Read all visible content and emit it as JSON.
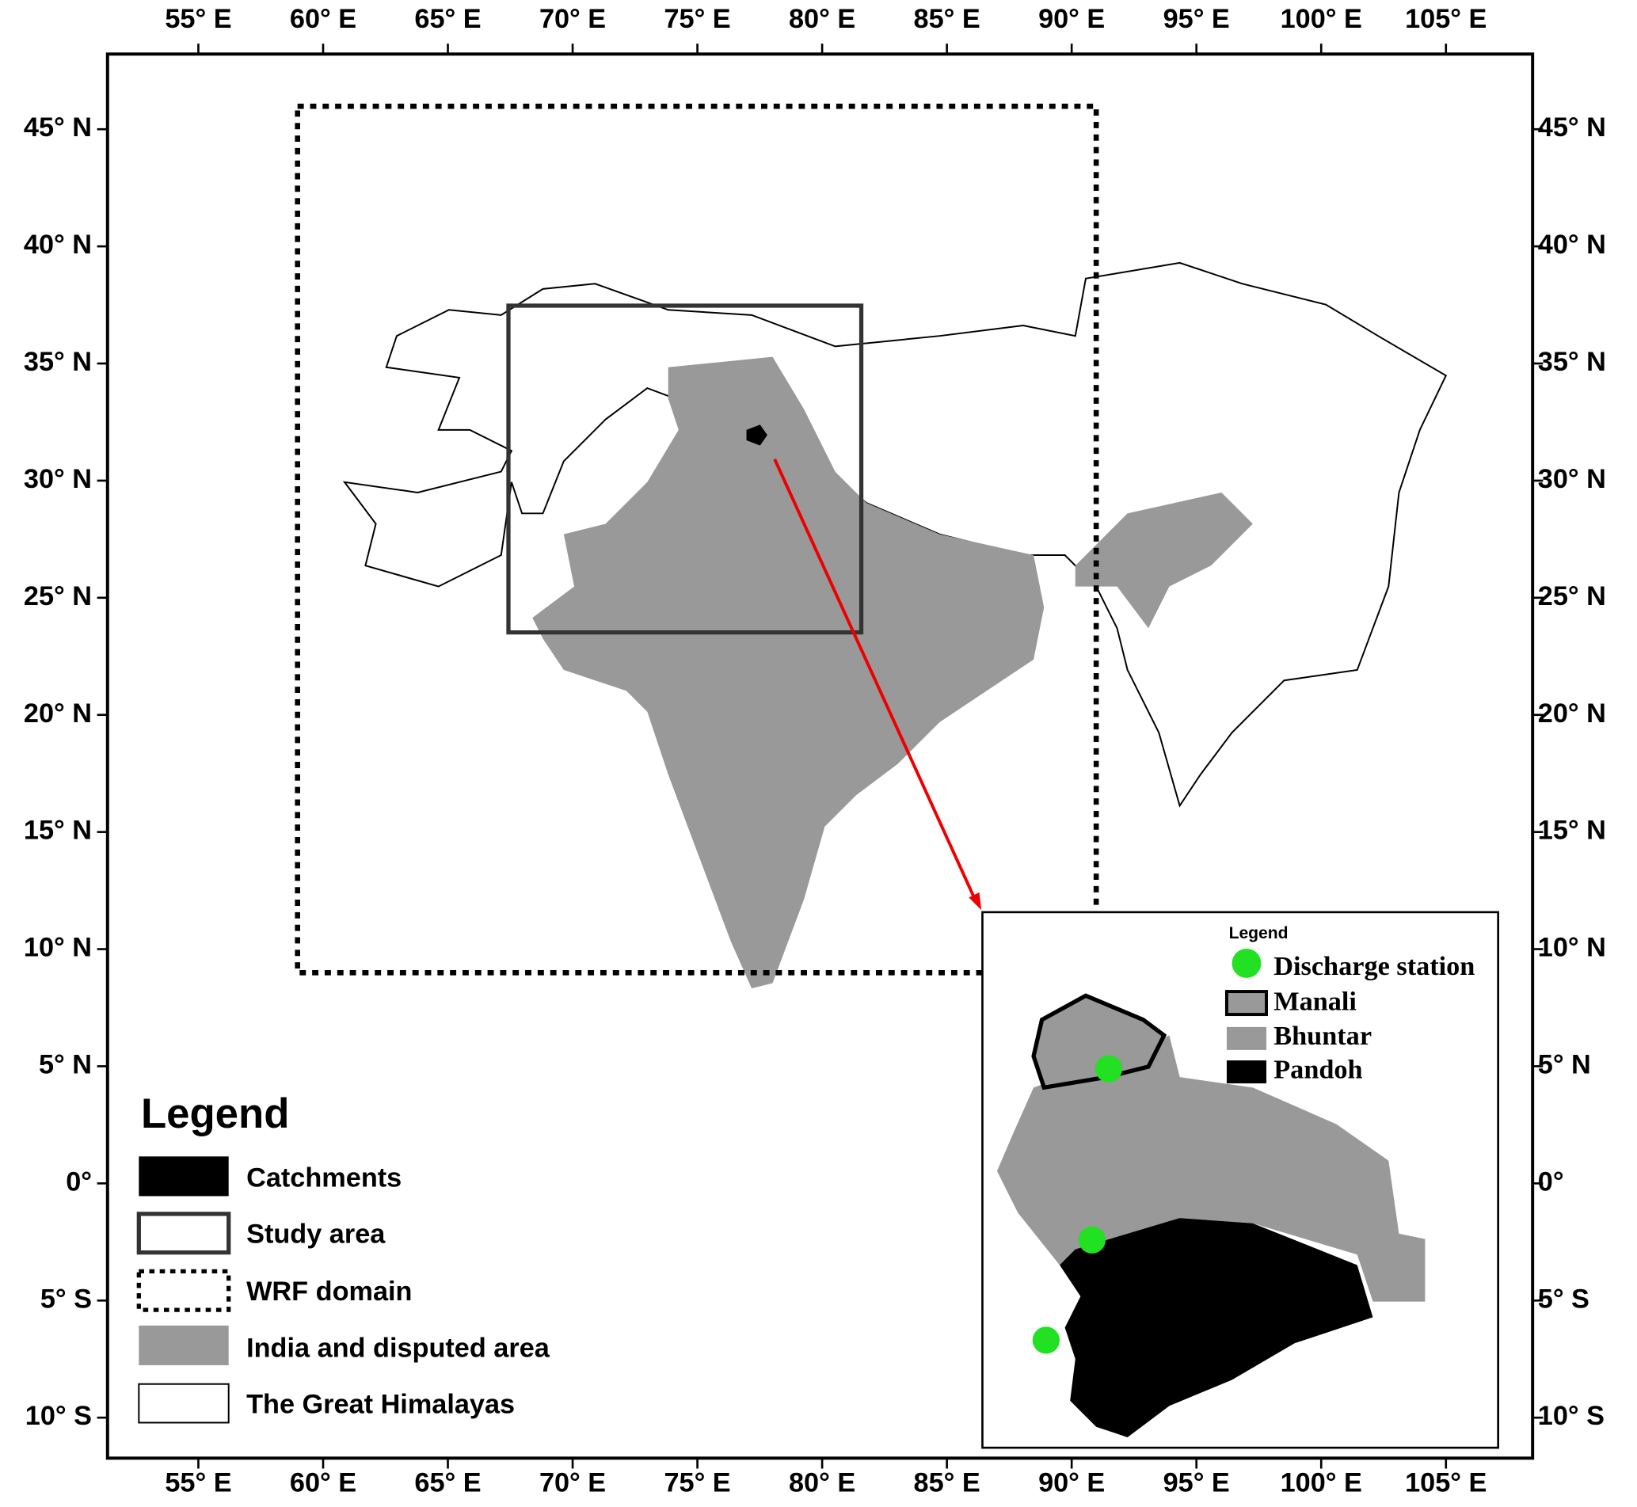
{
  "map": {
    "xticks": [
      {
        "value": 55,
        "label": "55° E"
      },
      {
        "value": 60,
        "label": "60° E"
      },
      {
        "value": 65,
        "label": "65° E"
      },
      {
        "value": 70,
        "label": "70° E"
      },
      {
        "value": 75,
        "label": "75° E"
      },
      {
        "value": 80,
        "label": "80° E"
      },
      {
        "value": 85,
        "label": "85° E"
      },
      {
        "value": 90,
        "label": "90° E"
      },
      {
        "value": 95,
        "label": "95° E"
      },
      {
        "value": 100,
        "label": "100° E"
      },
      {
        "value": 105,
        "label": "105° E"
      }
    ],
    "yticks": [
      {
        "value": 45,
        "label": "45° N"
      },
      {
        "value": 40,
        "label": "40° N"
      },
      {
        "value": 35,
        "label": "35° N"
      },
      {
        "value": 30,
        "label": "30° N"
      },
      {
        "value": 25,
        "label": "25° N"
      },
      {
        "value": 20,
        "label": "20° N"
      },
      {
        "value": 15,
        "label": "15° N"
      },
      {
        "value": 10,
        "label": "10° N"
      },
      {
        "value": 5,
        "label": "5° N"
      },
      {
        "value": 0,
        "label": "0°"
      },
      {
        "value": -5,
        "label": "5° S"
      },
      {
        "value": -10,
        "label": "10° S"
      }
    ],
    "legend": {
      "title": "Legend",
      "items": [
        "Catchments",
        "Study area",
        "WRF domain",
        "India and disputed area",
        "The Great Himalayas"
      ]
    },
    "inset_legend": {
      "title": "Legend",
      "items": [
        "Discharge station",
        "Manali",
        "Bhuntar",
        "Pandoh"
      ]
    }
  }
}
